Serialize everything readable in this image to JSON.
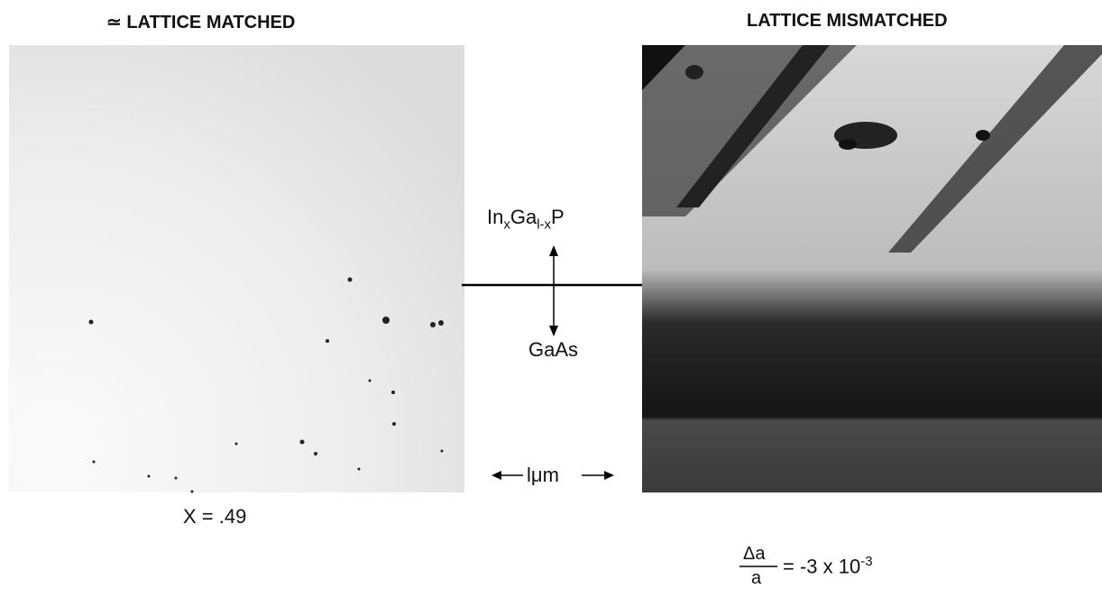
{
  "titles": {
    "left": "≃ LATTICE MATCHED",
    "right": "LATTICE MISMATCHED"
  },
  "interface": {
    "top": {
      "in": "In",
      "x": "x",
      "ga": "Ga",
      "sub": "l-x",
      "p": "P"
    },
    "bottom": "GaAs"
  },
  "scale_bar": "lμm",
  "left_caption": "X = .49",
  "right_caption": {
    "numerator": "Δa",
    "denominator": "a",
    "equals": "= -3 x 10",
    "exponent": "-3"
  }
}
